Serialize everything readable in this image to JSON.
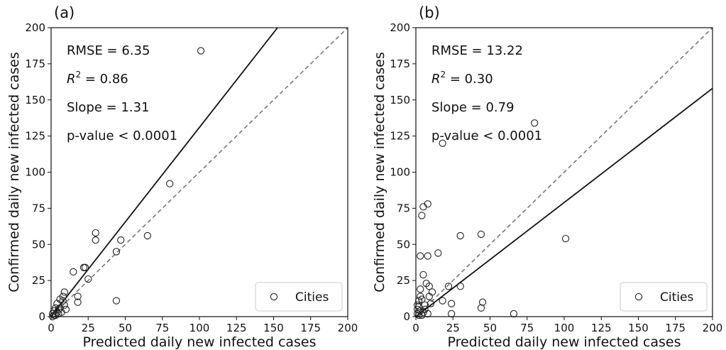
{
  "chart_data": [
    {
      "type": "scatter",
      "panel_label": "(a)",
      "xlabel": "Predicted daily new infected cases",
      "ylabel": "Confirmed daily new infected cases",
      "xlim": [
        0,
        200
      ],
      "ylim": [
        0,
        200
      ],
      "xticks": [
        "0",
        "25",
        "50",
        "75",
        "100",
        "125",
        "150",
        "175",
        "200"
      ],
      "yticks": [
        "0",
        "25",
        "50",
        "75",
        "100",
        "125",
        "150",
        "175",
        "200"
      ],
      "grid": false,
      "legend": {
        "position": "bottom-right",
        "entries": [
          "Cities"
        ]
      },
      "annotations": {
        "rmse": "RMSE = 6.35",
        "r2_symbol": "R",
        "r2_exp": "2",
        "r2_rest": " = 0.86",
        "slope": "Slope = 1.31",
        "pvalue": "p-value < 0.0001"
      },
      "fit_line": {
        "slope": 1.31,
        "intercept": 0
      },
      "identity_line": true,
      "series": [
        {
          "name": "Cities",
          "marker": "open-circle",
          "points": [
            [
              101,
              184
            ],
            [
              80,
              92
            ],
            [
              65,
              56
            ],
            [
              47,
              53
            ],
            [
              44,
              45
            ],
            [
              44,
              11
            ],
            [
              30,
              58
            ],
            [
              30,
              53
            ],
            [
              25,
              26
            ],
            [
              23,
              34
            ],
            [
              22,
              34
            ],
            [
              15,
              31
            ],
            [
              18,
              14
            ],
            [
              18,
              10
            ],
            [
              9,
              17
            ],
            [
              8,
              14
            ],
            [
              8,
              11
            ],
            [
              9,
              8
            ],
            [
              10,
              5
            ],
            [
              6,
              12
            ],
            [
              4,
              9
            ],
            [
              3,
              6
            ],
            [
              2,
              4
            ],
            [
              1,
              2
            ],
            [
              5,
              5
            ],
            [
              7,
              3
            ],
            [
              5,
              2
            ],
            [
              3,
              1
            ],
            [
              1,
              0
            ],
            [
              2,
              1
            ],
            [
              4,
              3
            ],
            [
              6,
              6
            ]
          ]
        }
      ]
    },
    {
      "type": "scatter",
      "panel_label": "(b)",
      "xlabel": "Predicted daily new infected cases",
      "ylabel": "Confirmed daily new infected cases",
      "xlim": [
        0,
        200
      ],
      "ylim": [
        0,
        200
      ],
      "xticks": [
        "0",
        "25",
        "50",
        "75",
        "100",
        "125",
        "150",
        "175",
        "200"
      ],
      "yticks": [
        "0",
        "25",
        "50",
        "75",
        "100",
        "125",
        "150",
        "175",
        "200"
      ],
      "grid": false,
      "legend": {
        "position": "bottom-right",
        "entries": [
          "Cities"
        ]
      },
      "annotations": {
        "rmse": "RMSE = 13.22",
        "r2_symbol": "R",
        "r2_exp": "2",
        "r2_rest": " = 0.30",
        "slope": "Slope = 0.79",
        "pvalue": "p-value < 0.0001"
      },
      "fit_line": {
        "slope": 0.79,
        "intercept": 0
      },
      "identity_line": true,
      "series": [
        {
          "name": "Cities",
          "marker": "open-circle",
          "points": [
            [
              80,
              134
            ],
            [
              18,
              120
            ],
            [
              8,
              78
            ],
            [
              5,
              76
            ],
            [
              4,
              70
            ],
            [
              101,
              54
            ],
            [
              30,
              56
            ],
            [
              44,
              57
            ],
            [
              15,
              44
            ],
            [
              3,
              42
            ],
            [
              8,
              42
            ],
            [
              5,
              29
            ],
            [
              7,
              23
            ],
            [
              9,
              21
            ],
            [
              22,
              21
            ],
            [
              30,
              21
            ],
            [
              3,
              19
            ],
            [
              11,
              17
            ],
            [
              9,
              14
            ],
            [
              4,
              12
            ],
            [
              18,
              11
            ],
            [
              45,
              10
            ],
            [
              44,
              6
            ],
            [
              24,
              9
            ],
            [
              2,
              7
            ],
            [
              6,
              8
            ],
            [
              3,
              4
            ],
            [
              1,
              2
            ],
            [
              5,
              3
            ],
            [
              8,
              2
            ],
            [
              24,
              2
            ],
            [
              66,
              2
            ],
            [
              2,
              1
            ],
            [
              4,
              1
            ],
            [
              1,
              5
            ],
            [
              6,
              5
            ],
            [
              10,
              9
            ],
            [
              2,
              11
            ],
            [
              3,
              14
            ],
            [
              1,
              8
            ]
          ]
        }
      ]
    }
  ]
}
